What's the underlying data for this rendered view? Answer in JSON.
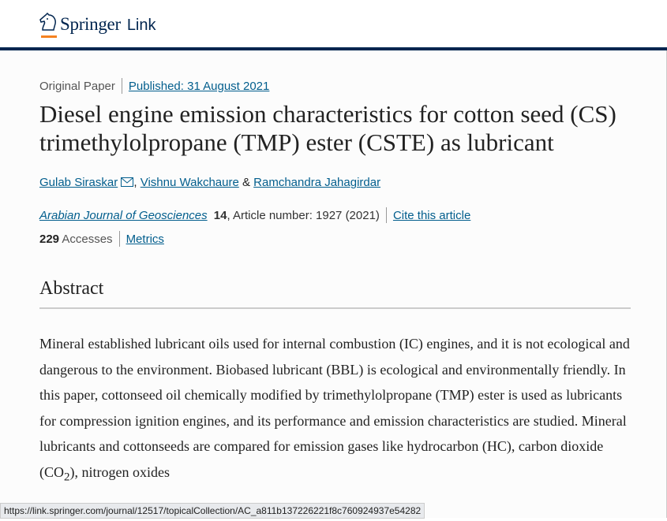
{
  "header": {
    "brand": "Springer",
    "brand_suffix": "Link",
    "accent": "#f58220",
    "brand_color": "#01254f",
    "icon": "horse-head-logo"
  },
  "article": {
    "type": "Original Paper",
    "published": "Published: 31 August 2021",
    "title": "Diesel engine emission characteristics for cotton seed (CS) trimethylolpropane (TMP) ester (CSTE) as lubricant",
    "authors": [
      "Gulab Siraskar",
      "Vishnu Wakchaure",
      "Ramchandra Jahagirdar"
    ],
    "author_sep": ", ",
    "author_and": " & ",
    "journal": "Arabian Journal of Geosciences",
    "volume": "14",
    "article_number": ", Article number: 1927 (2021)",
    "cite": "Cite this article",
    "accesses": "229",
    "accesses_label": " Accesses",
    "metrics": "Metrics"
  },
  "abstract": {
    "heading": "Abstract",
    "text_a": "Mineral established lubricant oils used for internal combustion (IC) engines, and it is not ecological and dangerous to the environment. Biobased lubricant (BBL) is ecological and environmentally friendly. In this paper, cottonseed oil chemically modified by trimethylolpropane (TMP) ester is used as lubricants for compression ignition engines, and its performance and emission characteristics are studied. Mineral lubricants and cottonseeds are compared for emission gases like hydrocarbon (HC), carbon dioxide (CO",
    "sub": "2",
    "text_b": "), nitrogen oxides"
  },
  "status_url": "https://link.springer.com/journal/12517/topicalCollection/AC_a811b137226221f8c760924937e54282"
}
